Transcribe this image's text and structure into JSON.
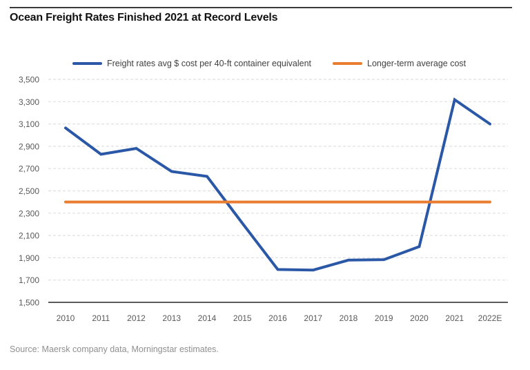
{
  "header": {
    "title": "Ocean Freight Rates Finished 2021 at Record Levels"
  },
  "footer": {
    "source": "Source: Maersk company data, Morningstar estimates."
  },
  "colors": {
    "series_blue": "#2A58A6",
    "series_orange": "#E97E30",
    "gridline": "#DFDFDF",
    "axis_line": "#58595B",
    "axis_label": "#595959",
    "title_rule": "#3A3A3A"
  },
  "chart_data": {
    "type": "line",
    "title": "Ocean Freight Rates Finished 2021 at Record Levels",
    "categories": [
      "2010",
      "2011",
      "2012",
      "2013",
      "2014",
      "2015",
      "2016",
      "2017",
      "2018",
      "2019",
      "2020",
      "2021",
      "2022E"
    ],
    "series": [
      {
        "name": "Freight rates avg $ cost per 40-ft container equivalent",
        "color": "#2A58A6",
        "values": [
          3064,
          2828,
          2881,
          2674,
          2630,
          2209,
          1795,
          1790,
          1879,
          1883,
          2000,
          3318,
          3100
        ]
      },
      {
        "name": "Longer-term average cost",
        "color": "#E97E30",
        "values": [
          2400,
          2400,
          2400,
          2400,
          2400,
          2400,
          2400,
          2400,
          2400,
          2400,
          2400,
          2400,
          2400
        ]
      }
    ],
    "xlabel": "",
    "ylabel": "",
    "ylim": [
      1500,
      3500
    ],
    "ytick_step": 200,
    "grid": "horizontal-dashed",
    "legend_position": "top"
  }
}
